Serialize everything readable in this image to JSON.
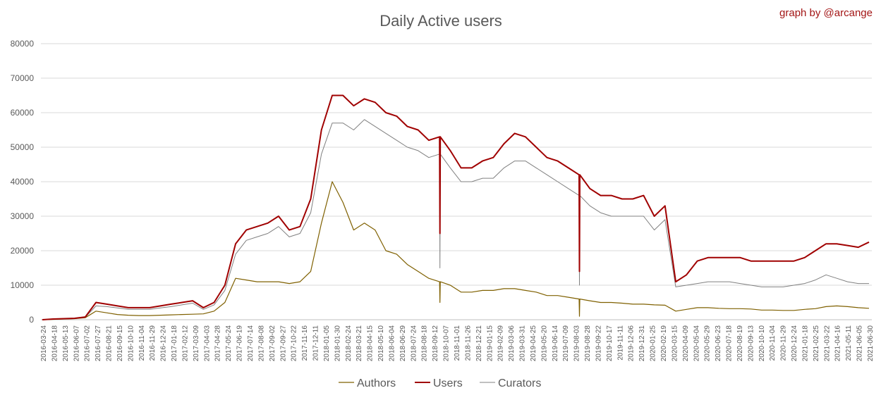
{
  "credit": "graph by @arcange",
  "chart_data": {
    "type": "line",
    "title": "Daily Active users",
    "xlabel": "",
    "ylabel": "",
    "ylim": [
      0,
      80000
    ],
    "yticks": [
      "0",
      "10000",
      "20000",
      "30000",
      "40000",
      "50000",
      "60000",
      "70000",
      "80000"
    ],
    "grid": true,
    "legend_position": "bottom",
    "x": [
      "2016-03-24",
      "2016-04-18",
      "2016-05-13",
      "2016-06-07",
      "2016-07-02",
      "2016-07-27",
      "2016-08-21",
      "2016-09-15",
      "2016-10-10",
      "2016-11-04",
      "2016-11-29",
      "2016-12-24",
      "2017-01-18",
      "2017-02-12",
      "2017-03-09",
      "2017-04-03",
      "2017-04-28",
      "2017-05-23",
      "2017-06-17",
      "2017-07-12",
      "2017-08-06",
      "2017-08-31",
      "2017-09-25",
      "2017-10-20",
      "2017-11-14",
      "2017-12-09",
      "2018-01-03",
      "2018-01-28",
      "2018-02-22",
      "2018-03-19",
      "2018-04-13",
      "2018-05-08",
      "2018-06-02",
      "2018-06-27",
      "2018-07-22",
      "2018-08-16",
      "2018-09-10",
      "2018-10-05",
      "2018-10-30",
      "2018-11-24",
      "2018-12-19",
      "2019-01-13",
      "2019-02-07",
      "2019-03-04",
      "2019-03-29",
      "2019-04-23",
      "2019-05-18",
      "2019-06-12",
      "2019-07-07",
      "2019-08-01",
      "2019-08-26",
      "2019-09-20",
      "2019-10-15",
      "2019-11-09",
      "2019-12-04",
      "2019-12-29",
      "2020-01-23",
      "2020-02-17",
      "2020-03-13",
      "2020-04-07",
      "2020-05-02",
      "2020-05-27",
      "2020-06-21",
      "2020-07-16",
      "2020-08-10",
      "2020-09-04",
      "2020-09-29",
      "2020-10-24",
      "2020-11-18",
      "2020-12-13",
      "2021-01-07",
      "2021-02-01",
      "2021-02-26",
      "2021-03-23",
      "2021-04-17",
      "2021-05-12",
      "2021-06-06",
      "2021-07-01"
    ],
    "xtick_labels": [
      "2016-03-24",
      "2016-04-18",
      "2016-05-13",
      "2016-06-07",
      "2016-07-02",
      "2016-07-27",
      "2016-08-21",
      "2016-09-15",
      "2016-10-10",
      "2016-11-04",
      "2016-11-29",
      "2016-12-24",
      "2017-01-18",
      "2017-02-12",
      "2017-03-09",
      "2017-04-03",
      "2017-04-28",
      "2017-05-24",
      "2017-06-19",
      "2017-07-14",
      "2017-08-08",
      "2017-09-02",
      "2017-09-27",
      "2017-10-22",
      "2017-11-16",
      "2017-12-11",
      "2018-01-05",
      "2018-01-30",
      "2018-02-24",
      "2018-03-21",
      "2018-04-15",
      "2018-05-10",
      "2018-06-04",
      "2018-06-29",
      "2018-07-24",
      "2018-08-18",
      "2018-09-12",
      "2018-10-07",
      "2018-11-01",
      "2018-11-26",
      "2018-12-21",
      "2019-01-15",
      "2019-02-09",
      "2019-03-06",
      "2019-03-31",
      "2019-04-25",
      "2019-05-20",
      "2019-06-14",
      "2019-07-09",
      "2019-08-03",
      "2019-08-28",
      "2019-09-22",
      "2019-10-17",
      "2019-11-11",
      "2019-12-06",
      "2019-12-31",
      "2020-01-25",
      "2020-02-19",
      "2020-03-15",
      "2020-04-09",
      "2020-05-04",
      "2020-05-29",
      "2020-06-23",
      "2020-07-18",
      "2020-08-19",
      "2020-09-13",
      "2020-10-10",
      "2020-11-04",
      "2020-11-29",
      "2020-12-24",
      "2021-01-18",
      "2021-02-25",
      "2021-03-22",
      "2021-04-16",
      "2021-05-11",
      "2021-06-05",
      "2021-06-30"
    ],
    "series": [
      {
        "name": "Authors",
        "color": "#7f6000",
        "values": [
          0,
          100,
          200,
          300,
          600,
          2500,
          2000,
          1500,
          1300,
          1200,
          1200,
          1300,
          1400,
          1500,
          1600,
          1700,
          2500,
          5000,
          12000,
          11500,
          11000,
          11000,
          11000,
          10500,
          11000,
          14000,
          28000,
          40000,
          34000,
          26000,
          28000,
          26000,
          20000,
          19000,
          16000,
          14000,
          12000,
          11000,
          10000,
          8000,
          8000,
          8500,
          8500,
          9000,
          9000,
          8500,
          8000,
          7000,
          7000,
          6500,
          6000,
          5500,
          5000,
          5000,
          4800,
          4500,
          4500,
          4300,
          4200,
          2500,
          3000,
          3500,
          3500,
          3300,
          3200,
          3200,
          3100,
          2800,
          2800,
          2700,
          2700,
          3000,
          3200,
          3800,
          4000,
          3800,
          3500,
          3300
        ]
      },
      {
        "name": "Users",
        "color": "#a00000",
        "values": [
          0,
          200,
          300,
          400,
          800,
          5000,
          4500,
          4000,
          3500,
          3500,
          3500,
          4000,
          4500,
          5000,
          5500,
          3500,
          5000,
          10000,
          22000,
          26000,
          27000,
          28000,
          30000,
          26000,
          27000,
          35000,
          55000,
          65000,
          65000,
          62000,
          64000,
          63000,
          60000,
          59000,
          56000,
          55000,
          52000,
          53000,
          49000,
          44000,
          44000,
          46000,
          47000,
          51000,
          54000,
          53000,
          50000,
          47000,
          46000,
          44000,
          42000,
          38000,
          36000,
          36000,
          35000,
          35000,
          36000,
          30000,
          33000,
          11000,
          13000,
          17000,
          18000,
          18000,
          18000,
          18000,
          17000,
          17000,
          17000,
          17000,
          17000,
          18000,
          20000,
          22000,
          22000,
          21500,
          21000,
          22500
        ]
      },
      {
        "name": "Curators",
        "color": "#808080",
        "values": [
          0,
          150,
          250,
          350,
          700,
          4000,
          3800,
          3400,
          3000,
          3000,
          3000,
          3400,
          3800,
          4300,
          4800,
          3000,
          4300,
          8500,
          19000,
          23000,
          24000,
          25000,
          27000,
          24000,
          25000,
          31000,
          48000,
          57000,
          57000,
          55000,
          58000,
          56000,
          54000,
          52000,
          50000,
          49000,
          47000,
          48000,
          44000,
          40000,
          40000,
          41000,
          41000,
          44000,
          46000,
          46000,
          44000,
          42000,
          40000,
          38000,
          36000,
          33000,
          31000,
          30000,
          30000,
          30000,
          30000,
          26000,
          29000,
          9500,
          10000,
          10500,
          11000,
          11000,
          11000,
          10500,
          10000,
          9500,
          9500,
          9500,
          10000,
          10500,
          11500,
          13000,
          12000,
          11000,
          10500,
          10500
        ]
      }
    ],
    "annotations": [
      {
        "series": "Users",
        "x": "2018-10-05",
        "value": 25000
      },
      {
        "series": "Curators",
        "x": "2018-10-05",
        "value": 15000
      },
      {
        "series": "Authors",
        "x": "2018-10-05",
        "value": 5000
      },
      {
        "series": "Users",
        "x": "2019-08-26",
        "value": 14000
      },
      {
        "series": "Curators",
        "x": "2019-08-26",
        "value": 10000
      },
      {
        "series": "Authors",
        "x": "2019-08-26",
        "value": 1000
      }
    ]
  }
}
